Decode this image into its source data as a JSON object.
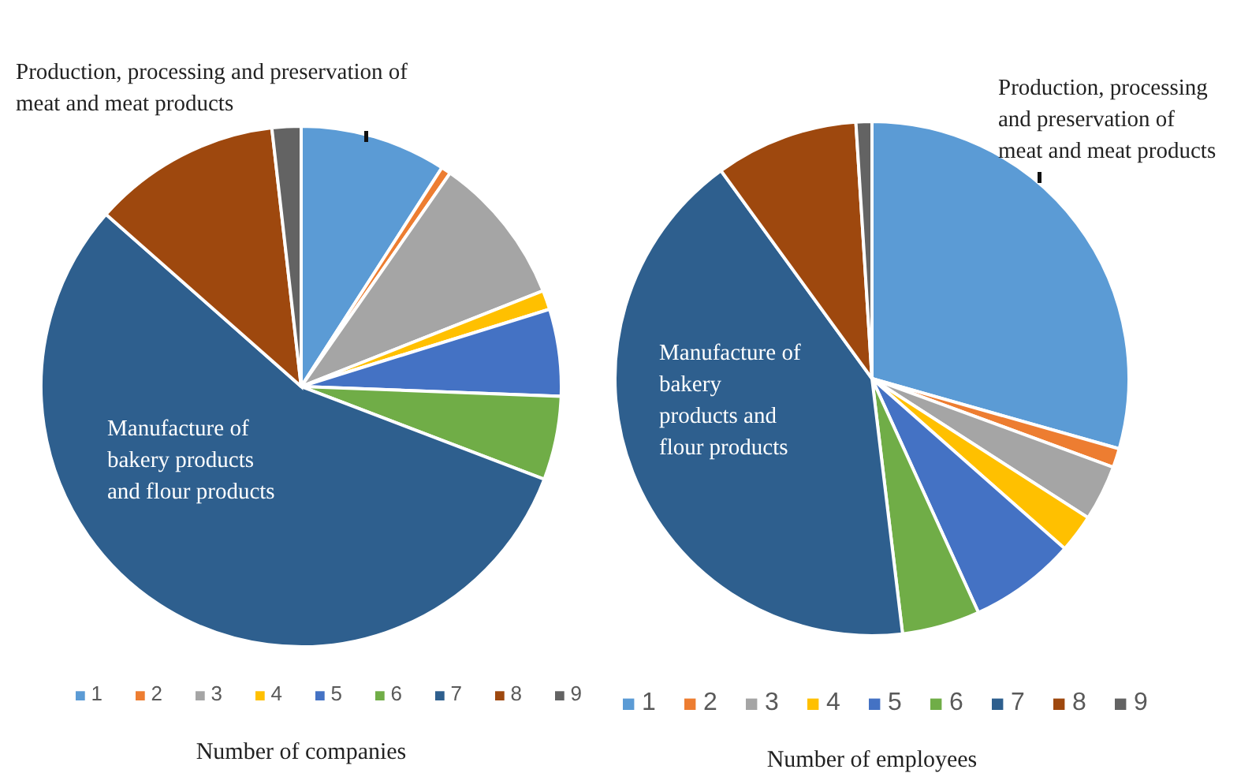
{
  "chart_data": [
    {
      "type": "pie",
      "title": "Number of companies",
      "categories": [
        "1",
        "2",
        "3",
        "4",
        "5",
        "6",
        "7",
        "8",
        "9"
      ],
      "values": [
        9.1,
        0.6,
        9.3,
        1.2,
        5.4,
        5.2,
        55.7,
        11.7,
        1.8
      ],
      "colors": [
        "#5b9bd5",
        "#ed7d31",
        "#a5a5a5",
        "#ffc000",
        "#4472c4",
        "#70ad47",
        "#2e5f8e",
        "#9e480e",
        "#636363"
      ],
      "legend": "bottom",
      "annotations": [
        "Production, processing and preservation of meat and meat products",
        "Manufacture of bakery products and flour products"
      ]
    },
    {
      "type": "pie",
      "title": "Number of employees",
      "categories": [
        "1",
        "2",
        "3",
        "4",
        "5",
        "6",
        "7",
        "8",
        "9"
      ],
      "values": [
        29.4,
        1.2,
        3.5,
        2.4,
        6.7,
        4.9,
        41.9,
        9,
        1
      ],
      "colors": [
        "#5b9bd5",
        "#ed7d31",
        "#a5a5a5",
        "#ffc000",
        "#4472c4",
        "#70ad47",
        "#2e5f8e",
        "#9e480e",
        "#636363"
      ],
      "legend": "bottom",
      "annotations": [
        "Production, processing and preservation of meat and meat products",
        "Manufacture of bakery products and flour products"
      ]
    }
  ]
}
